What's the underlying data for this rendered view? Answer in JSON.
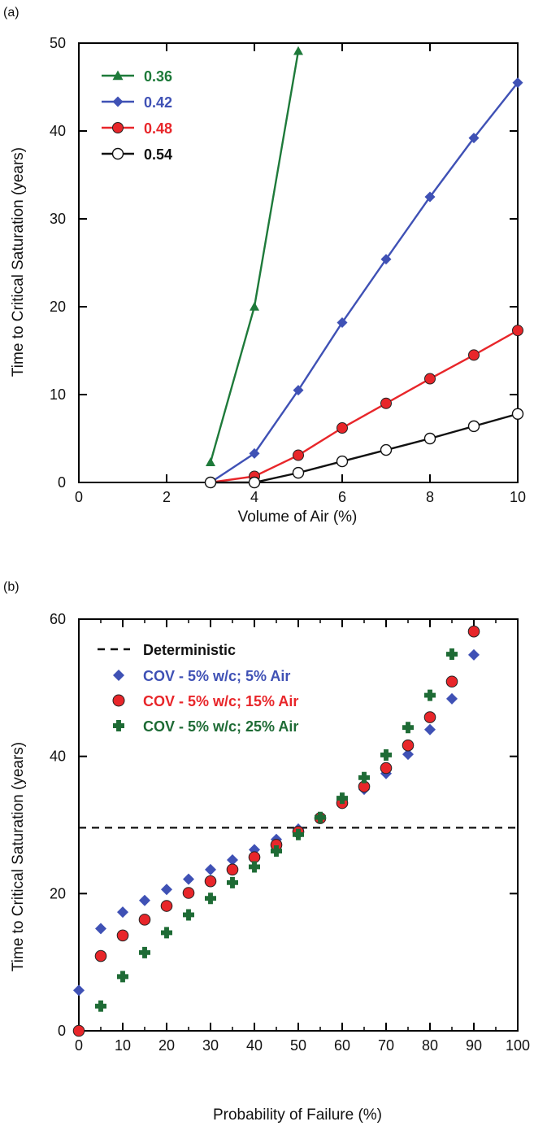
{
  "chart_data": [
    {
      "panel_label": "(a)",
      "type": "line",
      "xlabel": "Volume of Air (%)",
      "ylabel": "Time to Critical Saturation (years)",
      "xlim": [
        0,
        10
      ],
      "ylim": [
        0,
        50
      ],
      "xticks": [
        0,
        2,
        4,
        6,
        8,
        10
      ],
      "yticks": [
        0,
        10,
        20,
        30,
        40,
        50
      ],
      "grid": false,
      "legend_position": "top-left",
      "series": [
        {
          "name": "0.36",
          "color": "#1e7a3a",
          "marker": "triangle",
          "x": [
            3,
            4,
            5
          ],
          "y": [
            2.3,
            20.0,
            49.1
          ]
        },
        {
          "name": "0.42",
          "color": "#3f51b5",
          "marker": "diamond",
          "x": [
            3,
            4,
            5,
            6,
            7,
            8,
            9,
            10
          ],
          "y": [
            0.0,
            3.3,
            10.5,
            18.2,
            25.4,
            32.5,
            39.2,
            45.5
          ]
        },
        {
          "name": "0.48",
          "color": "#e8262a",
          "marker": "circle",
          "x": [
            3,
            4,
            5,
            6,
            7,
            8,
            9,
            10
          ],
          "y": [
            0.0,
            0.7,
            3.1,
            6.2,
            9.0,
            11.8,
            14.5,
            17.3
          ]
        },
        {
          "name": "0.54",
          "color": "#111111",
          "marker": "open-circle",
          "x": [
            3,
            4,
            5,
            6,
            7,
            8,
            9,
            10
          ],
          "y": [
            0.0,
            0.0,
            1.1,
            2.4,
            3.7,
            5.0,
            6.4,
            7.8
          ]
        }
      ]
    },
    {
      "panel_label": "(b)",
      "type": "scatter",
      "xlabel": "Probability of Failure (%)",
      "ylabel": "Time to Critical Saturation (years)",
      "xlim": [
        0,
        100
      ],
      "ylim": [
        0,
        60
      ],
      "xticks": [
        0,
        10,
        20,
        30,
        40,
        50,
        60,
        70,
        80,
        90,
        100
      ],
      "yticks": [
        0,
        20,
        40,
        60
      ],
      "grid": false,
      "legend_position": "top-left",
      "reference_line": {
        "name": "Deterministic",
        "y": 29.6,
        "style": "dashed",
        "color": "#111111"
      },
      "series": [
        {
          "name": "COV - 5% w/c; 5% Air",
          "color": "#3f51b5",
          "marker": "diamond",
          "x": [
            0,
            5,
            10,
            15,
            20,
            25,
            30,
            35,
            40,
            45,
            50,
            55,
            60,
            65,
            70,
            75,
            80,
            85,
            90
          ],
          "y": [
            5.9,
            14.9,
            17.3,
            19.0,
            20.6,
            22.1,
            23.5,
            24.9,
            26.4,
            27.9,
            29.4,
            31.1,
            33.2,
            35.2,
            37.5,
            40.3,
            43.9,
            48.4,
            54.8
          ]
        },
        {
          "name": "COV - 5% w/c; 15% Air",
          "color": "#e8262a",
          "marker": "circle",
          "x": [
            0,
            5,
            10,
            15,
            20,
            25,
            30,
            35,
            40,
            45,
            50,
            55,
            60,
            65,
            70,
            75,
            80,
            85,
            90
          ],
          "y": [
            0.0,
            10.9,
            13.9,
            16.2,
            18.2,
            20.1,
            21.8,
            23.5,
            25.3,
            27.1,
            29.0,
            31.0,
            33.2,
            35.6,
            38.3,
            41.6,
            45.7,
            50.9,
            58.2
          ]
        },
        {
          "name": "COV - 5% w/c; 25% Air",
          "color": "#1e6b35",
          "marker": "plus",
          "x": [
            5,
            10,
            15,
            20,
            25,
            30,
            35,
            40,
            45,
            50,
            55,
            60,
            65,
            70,
            75,
            80,
            85
          ],
          "y": [
            3.6,
            7.9,
            11.4,
            14.3,
            16.9,
            19.3,
            21.6,
            23.9,
            26.2,
            28.6,
            31.1,
            33.9,
            36.9,
            40.2,
            44.2,
            48.9,
            54.9
          ]
        }
      ]
    }
  ]
}
